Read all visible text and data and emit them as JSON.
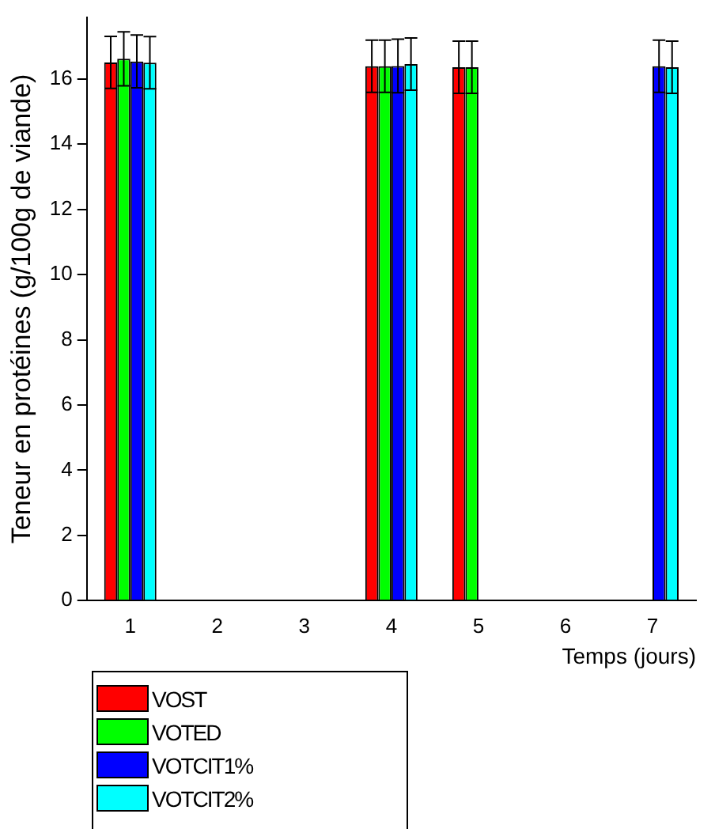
{
  "chart_data": {
    "type": "bar",
    "xlabel": "Temps (jours)",
    "ylabel": "Teneur en protéines (g/100g de viande)",
    "categories": [
      "1",
      "2",
      "3",
      "4",
      "5",
      "6",
      "7"
    ],
    "series": [
      {
        "name": "VOST",
        "color": "#ff0000",
        "values": [
          16.51,
          null,
          null,
          16.39,
          16.36,
          null,
          null
        ],
        "errors": [
          0.8,
          null,
          null,
          0.8,
          0.8,
          null,
          null
        ]
      },
      {
        "name": "VOTED",
        "color": "#00ff00",
        "values": [
          16.62,
          null,
          null,
          16.39,
          16.36,
          null,
          null
        ],
        "errors": [
          0.83,
          null,
          null,
          0.8,
          0.8,
          null,
          null
        ]
      },
      {
        "name": "VOTCIT1%",
        "color": "#0000ff",
        "values": [
          16.54,
          null,
          null,
          16.4,
          null,
          null,
          16.39
        ],
        "errors": [
          0.81,
          null,
          null,
          0.82,
          null,
          null,
          0.8
        ]
      },
      {
        "name": "VOTCIT2%",
        "color": "#00ffff",
        "values": [
          16.5,
          null,
          null,
          16.46,
          null,
          null,
          16.36
        ],
        "errors": [
          0.8,
          null,
          null,
          0.8,
          null,
          null,
          0.8
        ]
      }
    ],
    "ylim": [
      0,
      17.9
    ],
    "yticks": [
      0,
      2,
      4,
      6,
      8,
      10,
      12,
      14,
      16
    ],
    "grid": false,
    "legend": "bottom left"
  }
}
